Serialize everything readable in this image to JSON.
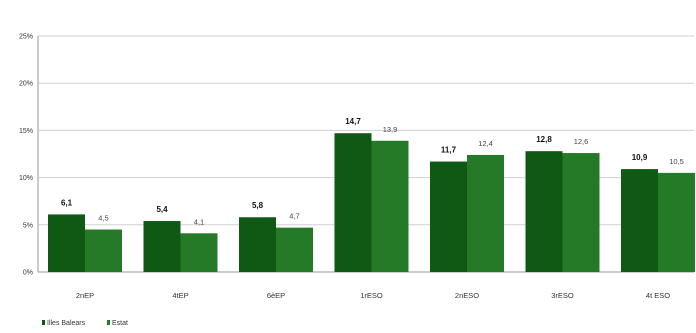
{
  "chart_data": {
    "type": "bar",
    "title": "",
    "xlabel": "",
    "ylabel": "",
    "ylim": [
      0,
      25
    ],
    "yticks": [
      "0%",
      "5%",
      "10%",
      "15%",
      "20%",
      "25%"
    ],
    "categories": [
      "2nEP",
      "4tEP",
      "6èEP",
      "1rESO",
      "2nESO",
      "3rESO",
      "4t ESO"
    ],
    "series": [
      {
        "name": "Illes Balears",
        "color": "#0e5a12",
        "values": [
          6.1,
          5.4,
          5.8,
          14.7,
          11.7,
          12.8,
          10.9
        ],
        "labels": [
          "6,1",
          "5,4",
          "5,8",
          "14,7",
          "11,7",
          "12,8",
          "10,9"
        ]
      },
      {
        "name": "Estat",
        "color": "#247a26",
        "values": [
          4.5,
          4.1,
          4.7,
          13.9,
          12.4,
          12.6,
          10.5
        ],
        "labels": [
          "4,5",
          "4,1",
          "4,7",
          "13,9",
          "12,4",
          "12,6",
          "10,5"
        ]
      }
    ],
    "grid": true,
    "legend_position": "bottom-left"
  }
}
